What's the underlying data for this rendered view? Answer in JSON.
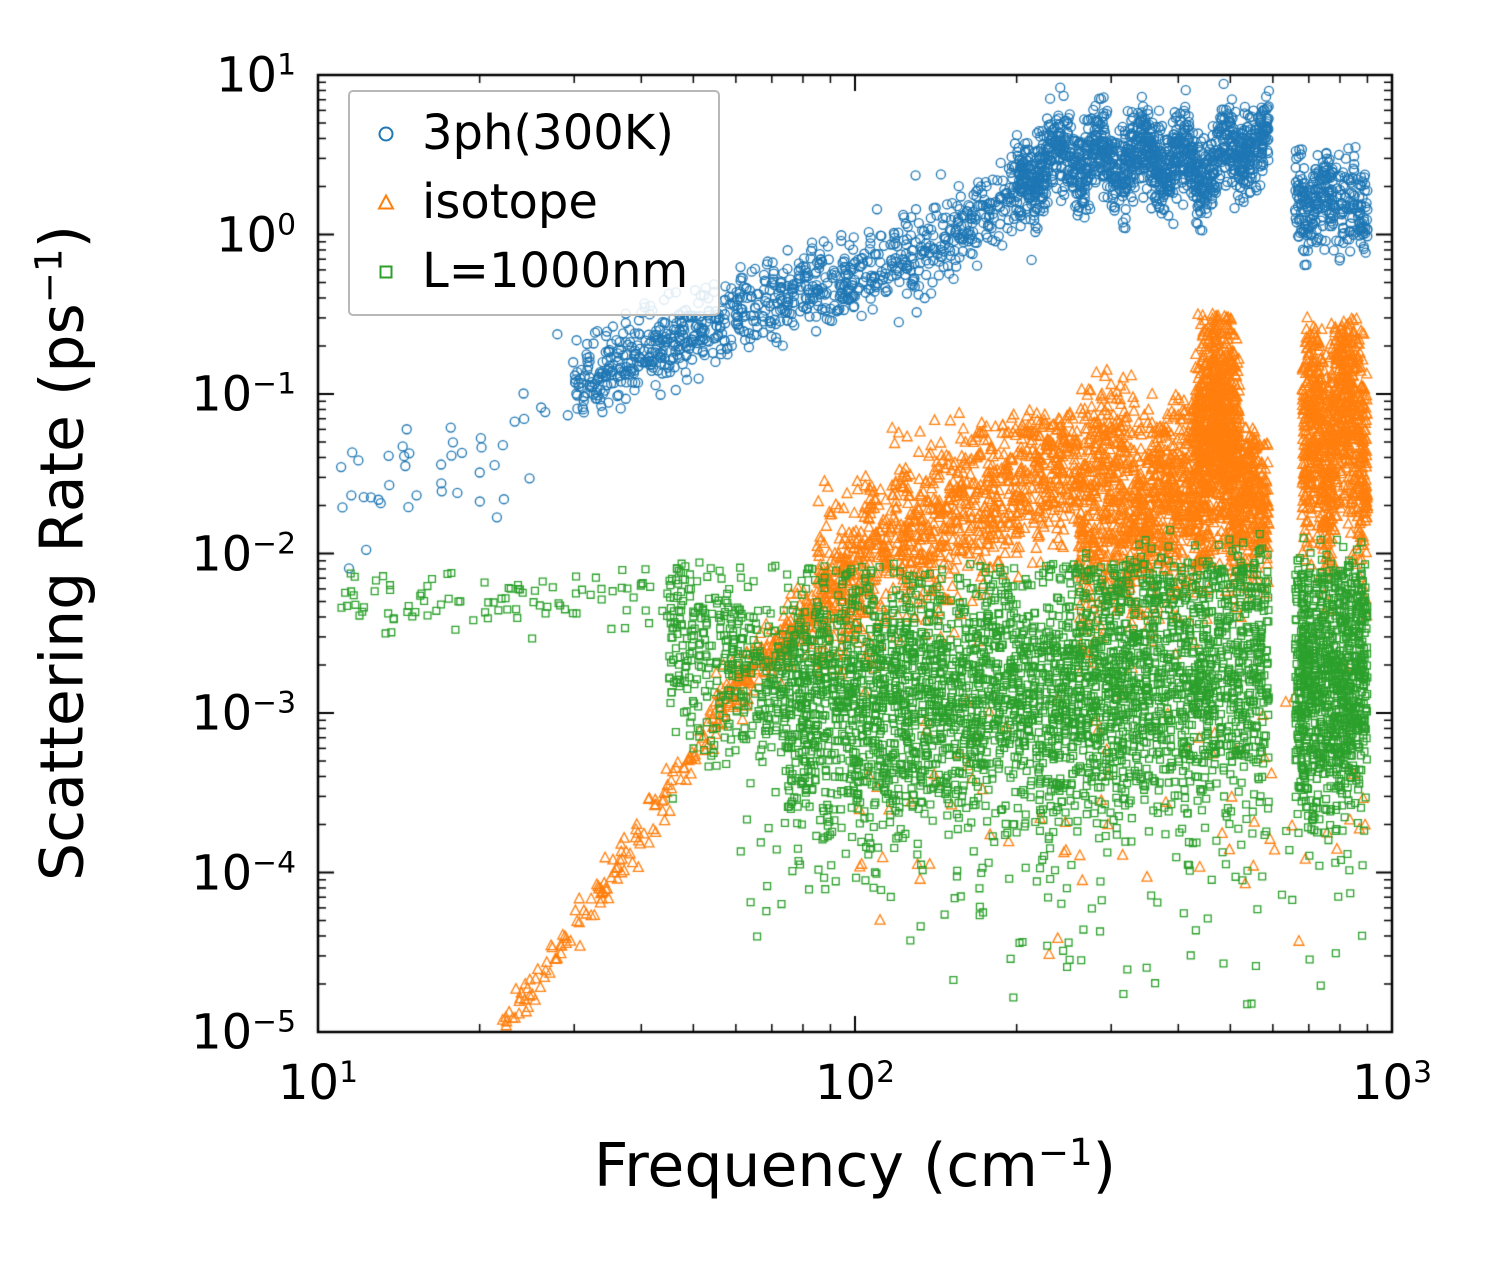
{
  "figure": {
    "xlabel_main": "Frequency (cm",
    "xlabel_sup": "−1",
    "xlabel_close": ")",
    "ylabel_main": "Scattering Rate (ps",
    "ylabel_sup": "−1",
    "ylabel_close": ")"
  },
  "chart_data": {
    "type": "scatter",
    "title": "",
    "xlabel": "Frequency (cm^-1)",
    "ylabel": "Scattering Rate (ps^-1)",
    "xscale": "log",
    "yscale": "log",
    "xlim": [
      10,
      1000
    ],
    "ylim": [
      1e-05,
      10
    ],
    "x_tick_exponents": [
      1,
      2,
      3
    ],
    "y_tick_exponents": [
      -5,
      -4,
      -3,
      -2,
      -1,
      0,
      1
    ],
    "grid": false,
    "legend_position": "upper left",
    "seed": 42,
    "series": [
      {
        "name": "3ph(300K)",
        "marker": "circle",
        "color": "#1f77b4",
        "marker_size": 4.5,
        "segments": [
          {
            "x_range": [
              11,
              30
            ],
            "count": 45,
            "trend": [
              [
                11,
                -1.6
              ],
              [
                20,
                -1.45
              ],
              [
                30,
                -1.0
              ]
            ],
            "sigma": 0.22
          },
          {
            "x_range": [
              30,
              200
            ],
            "count": 950,
            "trend": [
              [
                30,
                -0.95
              ],
              [
                50,
                -0.6
              ],
              [
                70,
                -0.42
              ],
              [
                100,
                -0.26
              ],
              [
                140,
                -0.1
              ],
              [
                200,
                0.3
              ]
            ],
            "sigma": 0.13
          },
          {
            "x_range": [
              200,
              590
            ],
            "count": 1500,
            "trend": [
              [
                200,
                0.33
              ],
              [
                250,
                0.5
              ],
              [
                300,
                0.45
              ],
              [
                350,
                0.5
              ],
              [
                400,
                0.45
              ],
              [
                450,
                0.42
              ],
              [
                500,
                0.5
              ],
              [
                545,
                0.6
              ],
              [
                590,
                0.55
              ]
            ],
            "sigma": 0.13,
            "osc": [
              0.1,
              80,
              0
            ]
          },
          {
            "x_range": [
              660,
              900
            ],
            "count": 320,
            "trend": [
              [
                660,
                0.28
              ],
              [
                700,
                0.1
              ],
              [
                750,
                0.3
              ],
              [
                800,
                0.12
              ],
              [
                850,
                0.28
              ],
              [
                900,
                0.05
              ]
            ],
            "sigma": 0.15
          }
        ]
      },
      {
        "name": "isotope",
        "marker": "triangle",
        "color": "#ff7f0e",
        "marker_size": 5,
        "segments": [
          {
            "x_range": [
              22,
              55
            ],
            "count": 140,
            "trend": [
              [
                22,
                -5.0
              ],
              [
                30,
                -4.35
              ],
              [
                40,
                -3.75
              ],
              [
                50,
                -3.3
              ],
              [
                55,
                -3.05
              ]
            ],
            "sigma": 0.07
          },
          {
            "x_range": [
              55,
              85
            ],
            "count": 190,
            "trend": [
              [
                55,
                -3.0
              ],
              [
                70,
                -2.6
              ],
              [
                85,
                -2.35
              ]
            ],
            "sigma": 0.1
          },
          {
            "x_range": [
              85,
              260
            ],
            "count": 1100,
            "trend": [
              [
                85,
                -2.3
              ],
              [
                120,
                -1.95
              ],
              [
                160,
                -1.72
              ],
              [
                200,
                -1.5
              ],
              [
                260,
                -1.42
              ]
            ],
            "sigma": 0.27,
            "y_clip": [
              -3.2,
              -1.1
            ]
          },
          {
            "x_range": [
              260,
              330
            ],
            "count": 450,
            "trend": [
              [
                260,
                -1.8
              ],
              [
                300,
                -1.45
              ],
              [
                330,
                -1.85
              ]
            ],
            "sigma": 0.42,
            "y_clip": [
              -2.8,
              -0.85
            ]
          },
          {
            "x_range": [
              330,
              430
            ],
            "count": 500,
            "trend": [
              [
                330,
                -1.8
              ],
              [
                380,
                -1.6
              ],
              [
                430,
                -1.55
              ]
            ],
            "sigma": 0.34,
            "y_clip": [
              -2.9,
              -1.0
            ]
          },
          {
            "x_range": [
              430,
              520
            ],
            "count": 950,
            "trend": [
              [
                430,
                -1.45
              ],
              [
                470,
                -1.05
              ],
              [
                520,
                -1.45
              ]
            ],
            "sigma": 0.4,
            "y_clip": [
              -2.6,
              -0.5
            ]
          },
          {
            "x_range": [
              520,
              590
            ],
            "count": 260,
            "trend": [
              [
                520,
                -1.65
              ],
              [
                555,
                -1.55
              ],
              [
                590,
                -1.7
              ]
            ],
            "sigma": 0.3,
            "y_clip": [
              -2.8,
              -1.2
            ]
          },
          {
            "x_range": [
              680,
              900
            ],
            "count": 950,
            "trend": [
              [
                680,
                -1.35
              ],
              [
                720,
                -1.05
              ],
              [
                760,
                -1.55
              ],
              [
                800,
                -0.9
              ],
              [
                850,
                -1.1
              ],
              [
                900,
                -1.5
              ]
            ],
            "sigma": 0.38,
            "y_clip": [
              -2.6,
              -0.52
            ]
          },
          {
            "x_range": [
              100,
              900
            ],
            "count": 80,
            "trend": [
              [
                100,
                -3.3
              ],
              [
                900,
                -3.5
              ]
            ],
            "sigma": 0.5,
            "y_clip": [
              -4.9,
              -2.6
            ]
          }
        ]
      },
      {
        "name": "L=1000nm",
        "marker": "square",
        "color": "#2ca02c",
        "marker_size": 4,
        "segments": [
          {
            "x_range": [
              11,
              45
            ],
            "count": 95,
            "trend": [
              [
                11,
                -2.32
              ],
              [
                45,
                -2.3
              ]
            ],
            "sigma": 0.1,
            "y_clip": [
              -2.6,
              -2.0
            ]
          },
          {
            "x_range": [
              45,
              75
            ],
            "count": 380,
            "trend": [
              [
                45,
                -2.45
              ],
              [
                60,
                -2.7
              ],
              [
                75,
                -2.85
              ]
            ],
            "sigma": 0.32,
            "y_clip": [
              -4.2,
              -2.05
            ]
          },
          {
            "x_range": [
              75,
              590
            ],
            "count": 3300,
            "trend": [
              [
                75,
                -2.92
              ],
              [
                150,
                -2.9
              ],
              [
                300,
                -2.85
              ],
              [
                450,
                -2.8
              ],
              [
                590,
                -2.72
              ]
            ],
            "sigma": 0.42,
            "y_clip": [
              -4.6,
              -2.05
            ]
          },
          {
            "x_range": [
              660,
              900
            ],
            "count": 950,
            "trend": [
              [
                660,
                -2.8
              ],
              [
                750,
                -2.88
              ],
              [
                900,
                -2.72
              ]
            ],
            "sigma": 0.42,
            "y_clip": [
              -4.6,
              -2.1
            ]
          },
          {
            "x_range": [
              60,
              900
            ],
            "count": 130,
            "trend": [
              [
                60,
                -3.8
              ],
              [
                900,
                -4.0
              ]
            ],
            "sigma": 0.5,
            "y_clip": [
              -5.0,
              -3.2
            ]
          },
          {
            "x_range": [
              250,
              590
            ],
            "count": 130,
            "trend": [
              [
                250,
                -2.2
              ],
              [
                590,
                -2.1
              ]
            ],
            "sigma": 0.15,
            "y_clip": [
              -2.35,
              -1.85
            ]
          },
          {
            "x_range": [
              660,
              900
            ],
            "count": 70,
            "trend": [
              [
                660,
                -2.2
              ],
              [
                900,
                -2.15
              ]
            ],
            "sigma": 0.15,
            "y_clip": [
              -2.35,
              -1.9
            ]
          }
        ]
      }
    ]
  }
}
